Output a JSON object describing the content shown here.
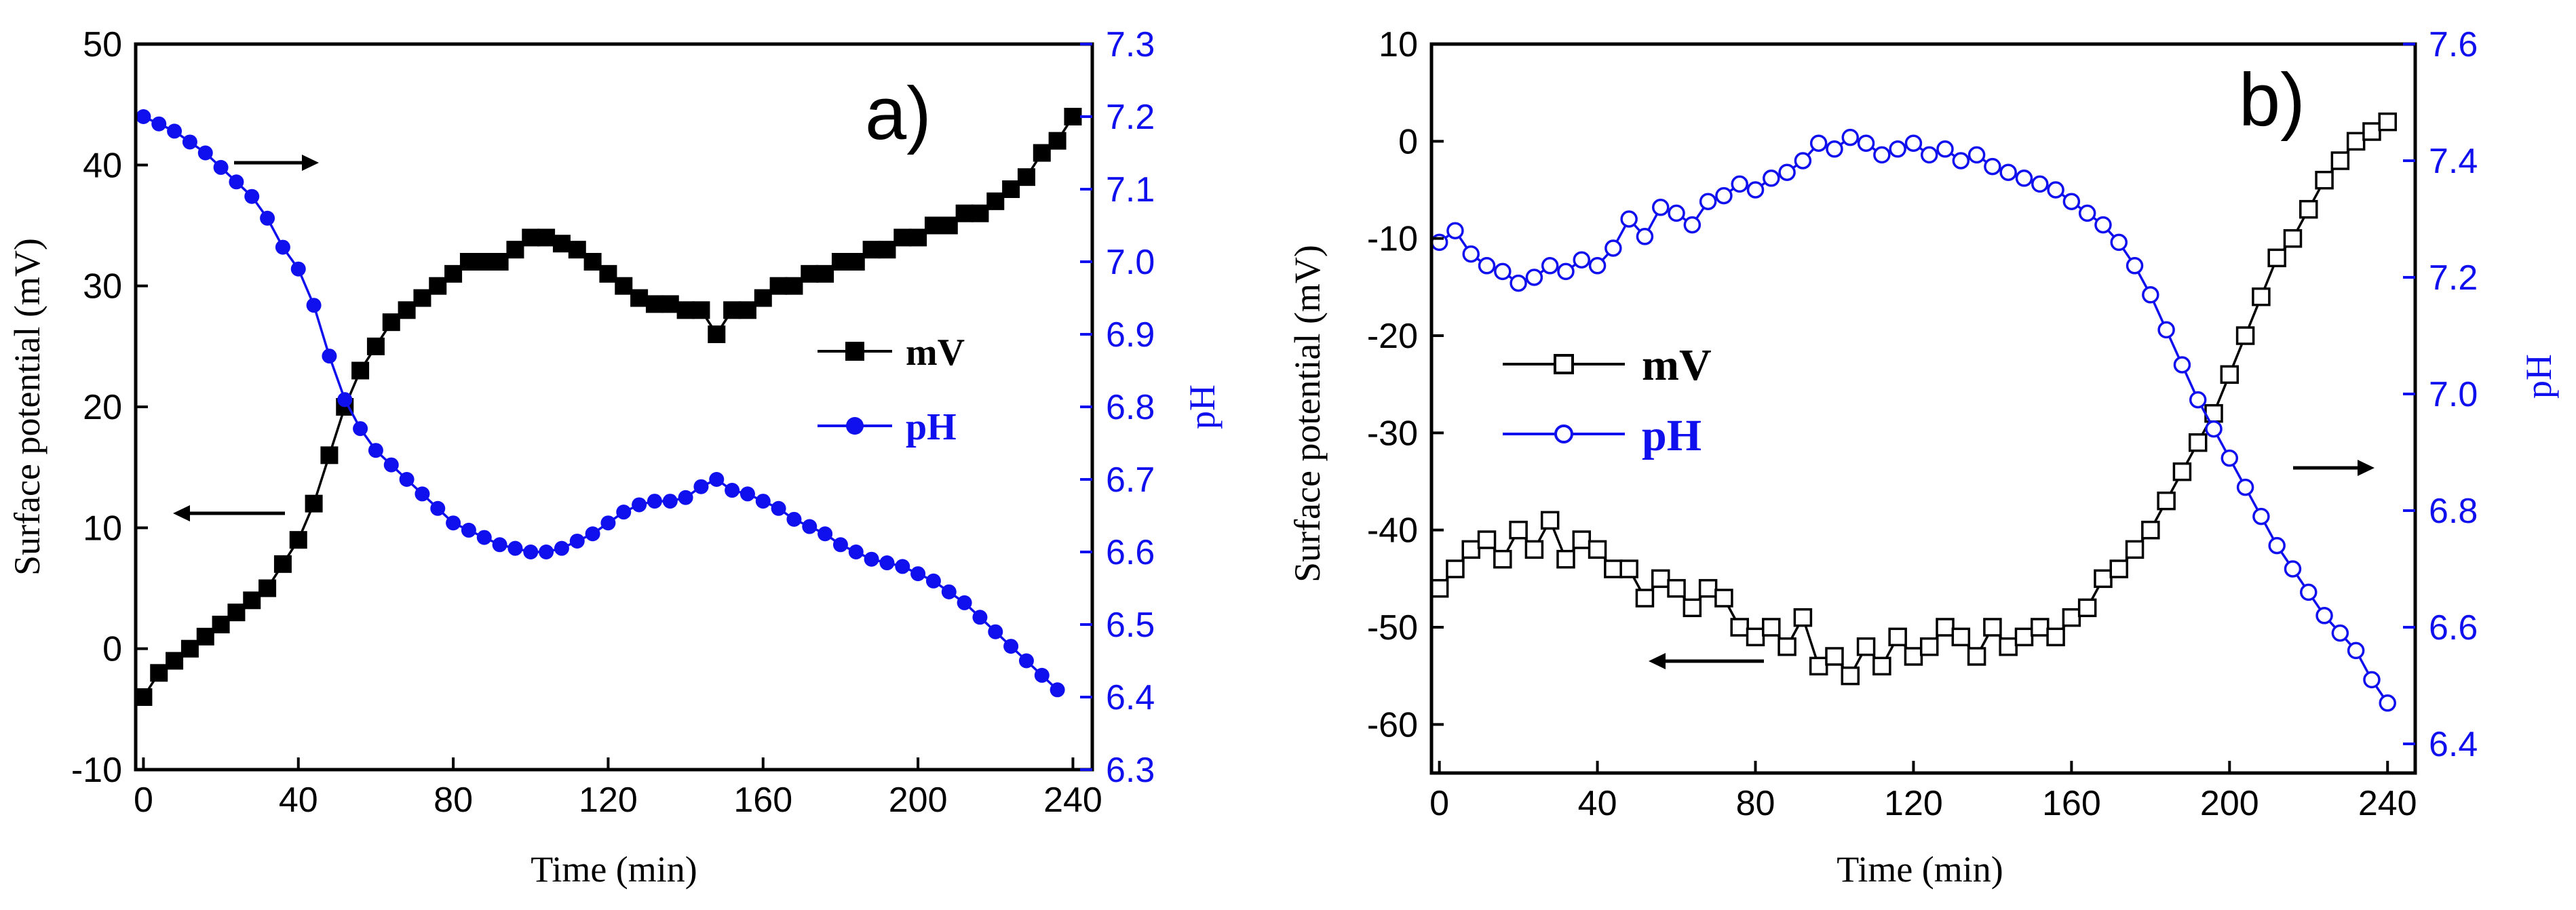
{
  "colors": {
    "mv": "#000000",
    "ph": "#1010ee",
    "axis": "#000000"
  },
  "chart_data": [
    {
      "type": "line",
      "panel_label": "a)",
      "xlabel": "Time (min)",
      "ylabel_left": "Surface potential (mV)",
      "ylabel_right": "pH",
      "xlim": [
        -2,
        245
      ],
      "ylim_left": [
        -10,
        50
      ],
      "ylim_right": [
        6.3,
        7.3
      ],
      "xticks": [
        "0",
        "40",
        "80",
        "120",
        "160",
        "200",
        "240"
      ],
      "yticks_left": [
        "-10",
        "0",
        "10",
        "20",
        "30",
        "40",
        "50"
      ],
      "yticks_right": [
        "6.3",
        "6.4",
        "6.5",
        "6.6",
        "6.7",
        "6.8",
        "6.9",
        "7.0",
        "7.1",
        "7.2",
        "7.3"
      ],
      "legend": [
        "mV",
        "pH"
      ],
      "series": [
        {
          "name": "mV",
          "axis": "left",
          "marker": "square-filled",
          "x": [
            0,
            4,
            8,
            12,
            16,
            20,
            24,
            28,
            32,
            36,
            40,
            44,
            48,
            52,
            56,
            60,
            64,
            68,
            72,
            76,
            80,
            84,
            88,
            92,
            96,
            100,
            104,
            108,
            112,
            116,
            120,
            124,
            128,
            132,
            136,
            140,
            144,
            148,
            152,
            156,
            160,
            164,
            168,
            172,
            176,
            180,
            184,
            188,
            192,
            196,
            200,
            204,
            208,
            212,
            216,
            220,
            224,
            228,
            232,
            236,
            240
          ],
          "values": [
            -4,
            -2,
            -1,
            0,
            1,
            2,
            3,
            4,
            5,
            7,
            9,
            12,
            16,
            20,
            23,
            25,
            27,
            28,
            29,
            30,
            31,
            32,
            32,
            32,
            33,
            34,
            34,
            33.5,
            33,
            32,
            31,
            30,
            29,
            28.5,
            28.5,
            28,
            28,
            26,
            28,
            28,
            29,
            30,
            30,
            31,
            31,
            32,
            32,
            33,
            33,
            34,
            34,
            35,
            35,
            36,
            36,
            37,
            38,
            39,
            41,
            42,
            44
          ]
        },
        {
          "name": "pH",
          "axis": "right",
          "marker": "circle-filled",
          "x": [
            0,
            4,
            8,
            12,
            16,
            20,
            24,
            28,
            32,
            36,
            40,
            44,
            48,
            52,
            56,
            60,
            64,
            68,
            72,
            76,
            80,
            84,
            88,
            92,
            96,
            100,
            104,
            108,
            112,
            116,
            120,
            124,
            128,
            132,
            136,
            140,
            144,
            148,
            152,
            156,
            160,
            164,
            168,
            172,
            176,
            180,
            184,
            188,
            192,
            196,
            200,
            204,
            208,
            212,
            216,
            220,
            224,
            228,
            232,
            236
          ],
          "values": [
            7.2,
            7.19,
            7.18,
            7.165,
            7.15,
            7.13,
            7.11,
            7.09,
            7.06,
            7.02,
            6.99,
            6.94,
            6.87,
            6.81,
            6.77,
            6.74,
            6.72,
            6.7,
            6.68,
            6.66,
            6.64,
            6.63,
            6.62,
            6.61,
            6.605,
            6.6,
            6.6,
            6.605,
            6.615,
            6.625,
            6.64,
            6.655,
            6.665,
            6.67,
            6.67,
            6.675,
            6.69,
            6.7,
            6.685,
            6.68,
            6.67,
            6.66,
            6.645,
            6.635,
            6.625,
            6.61,
            6.6,
            6.59,
            6.585,
            6.58,
            6.57,
            6.56,
            6.545,
            6.53,
            6.51,
            6.49,
            6.47,
            6.45,
            6.43,
            6.41
          ]
        }
      ]
    },
    {
      "type": "line",
      "panel_label": "b)",
      "xlabel": "Time (min)",
      "ylabel_left": "Surface potential (mV)",
      "ylabel_right": "pH",
      "xlim": [
        -2,
        247
      ],
      "ylim_left": [
        -65,
        10
      ],
      "ylim_right": [
        6.35,
        7.6
      ],
      "xticks": [
        "0",
        "40",
        "80",
        "120",
        "160",
        "200",
        "240"
      ],
      "yticks_left": [
        "-60",
        "-50",
        "-40",
        "-30",
        "-20",
        "-10",
        "0",
        "10"
      ],
      "yticks_right": [
        "6.4",
        "6.6",
        "6.8",
        "7.0",
        "7.2",
        "7.4",
        "7.6"
      ],
      "legend": [
        "mV",
        "pH"
      ],
      "series": [
        {
          "name": "mV",
          "axis": "left",
          "marker": "square-open",
          "x": [
            0,
            4,
            8,
            12,
            16,
            20,
            24,
            28,
            32,
            36,
            40,
            44,
            48,
            52,
            56,
            60,
            64,
            68,
            72,
            76,
            80,
            84,
            88,
            92,
            96,
            100,
            104,
            108,
            112,
            116,
            120,
            124,
            128,
            132,
            136,
            140,
            144,
            148,
            152,
            156,
            160,
            164,
            168,
            172,
            176,
            180,
            184,
            188,
            192,
            196,
            200,
            204,
            208,
            212,
            216,
            220,
            224,
            228,
            232,
            236,
            240
          ],
          "values": [
            -46,
            -44,
            -42,
            -41,
            -43,
            -40,
            -42,
            -39,
            -43,
            -41,
            -42,
            -44,
            -44,
            -47,
            -45,
            -46,
            -48,
            -46,
            -47,
            -50,
            -51,
            -50,
            -52,
            -49,
            -54,
            -53,
            -55,
            -52,
            -54,
            -51,
            -53,
            -52,
            -50,
            -51,
            -53,
            -50,
            -52,
            -51,
            -50,
            -51,
            -49,
            -48,
            -45,
            -44,
            -42,
            -40,
            -37,
            -34,
            -31,
            -28,
            -24,
            -20,
            -16,
            -12,
            -10,
            -7,
            -4,
            -2,
            0,
            1,
            2
          ]
        },
        {
          "name": "pH",
          "axis": "right",
          "marker": "circle-open",
          "x": [
            0,
            4,
            8,
            12,
            16,
            20,
            24,
            28,
            32,
            36,
            40,
            44,
            48,
            52,
            56,
            60,
            64,
            68,
            72,
            76,
            80,
            84,
            88,
            92,
            96,
            100,
            104,
            108,
            112,
            116,
            120,
            124,
            128,
            132,
            136,
            140,
            144,
            148,
            152,
            156,
            160,
            164,
            168,
            172,
            176,
            180,
            184,
            188,
            192,
            196,
            200,
            204,
            208,
            212,
            216,
            220,
            224,
            228,
            232,
            236,
            240
          ],
          "values": [
            7.26,
            7.28,
            7.24,
            7.22,
            7.21,
            7.19,
            7.2,
            7.22,
            7.21,
            7.23,
            7.22,
            7.25,
            7.3,
            7.27,
            7.32,
            7.31,
            7.29,
            7.33,
            7.34,
            7.36,
            7.35,
            7.37,
            7.38,
            7.4,
            7.43,
            7.42,
            7.44,
            7.43,
            7.41,
            7.42,
            7.43,
            7.41,
            7.42,
            7.4,
            7.41,
            7.39,
            7.38,
            7.37,
            7.36,
            7.35,
            7.33,
            7.31,
            7.29,
            7.26,
            7.22,
            7.17,
            7.11,
            7.05,
            6.99,
            6.94,
            6.89,
            6.84,
            6.79,
            6.74,
            6.7,
            6.66,
            6.62,
            6.59,
            6.56,
            6.51,
            6.47
          ]
        }
      ]
    }
  ]
}
